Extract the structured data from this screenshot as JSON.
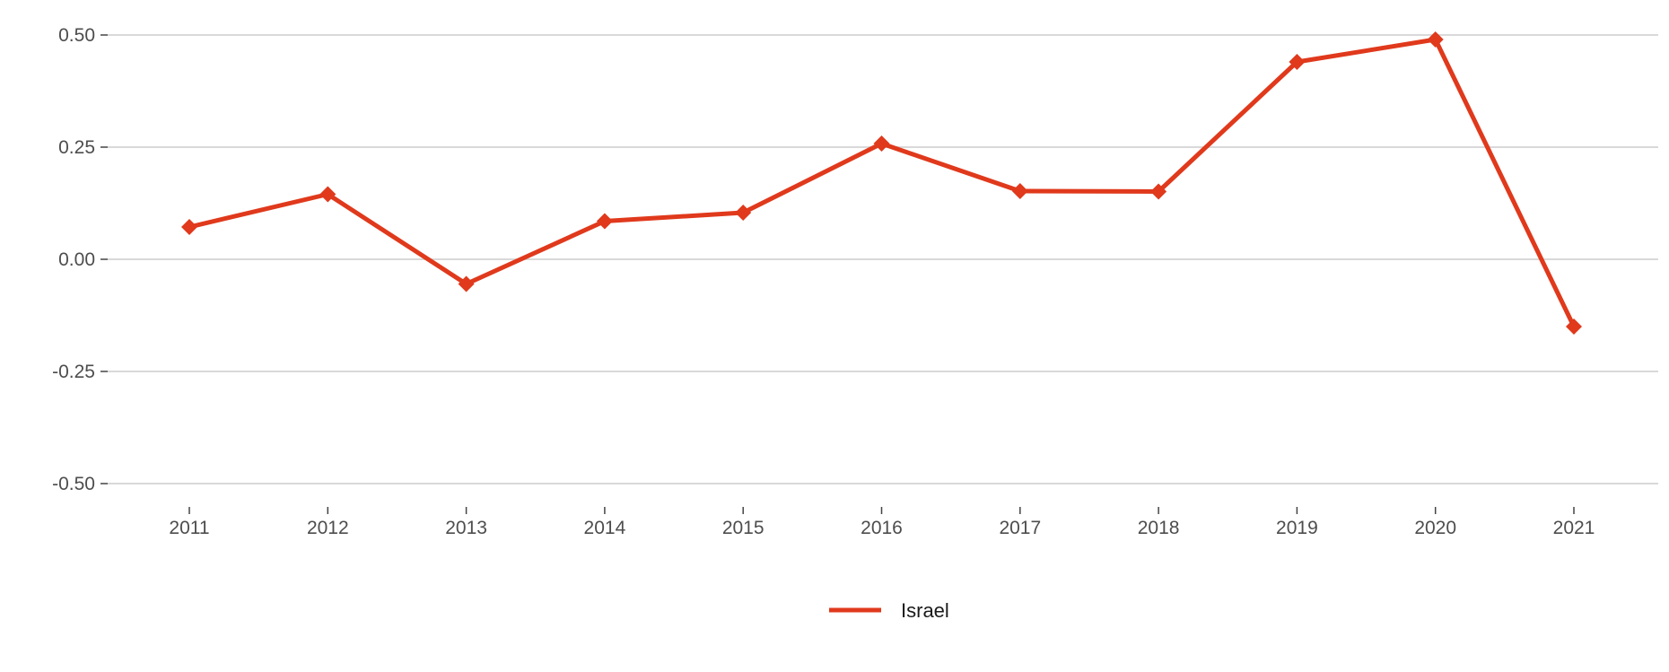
{
  "chart_data": {
    "type": "line",
    "x": [
      "2011",
      "2012",
      "2013",
      "2014",
      "2015",
      "2016",
      "2017",
      "2018",
      "2019",
      "2020",
      "2021"
    ],
    "series": [
      {
        "name": "Israel",
        "color": "#e0391c",
        "marker": "diamond",
        "values": [
          0.072,
          0.145,
          -0.055,
          0.085,
          0.104,
          0.258,
          0.152,
          0.151,
          0.44,
          0.49,
          -0.15
        ]
      }
    ],
    "y_ticks": [
      "0.50",
      "0.25",
      "0.00",
      "-0.25",
      "-0.50"
    ],
    "y_tick_values": [
      0.5,
      0.25,
      0.0,
      -0.25,
      -0.5
    ],
    "ylim": [
      -0.5,
      0.5
    ],
    "grid": "horizontal",
    "legend_position": "bottom-center",
    "title": "",
    "xlabel": "",
    "ylabel": ""
  }
}
